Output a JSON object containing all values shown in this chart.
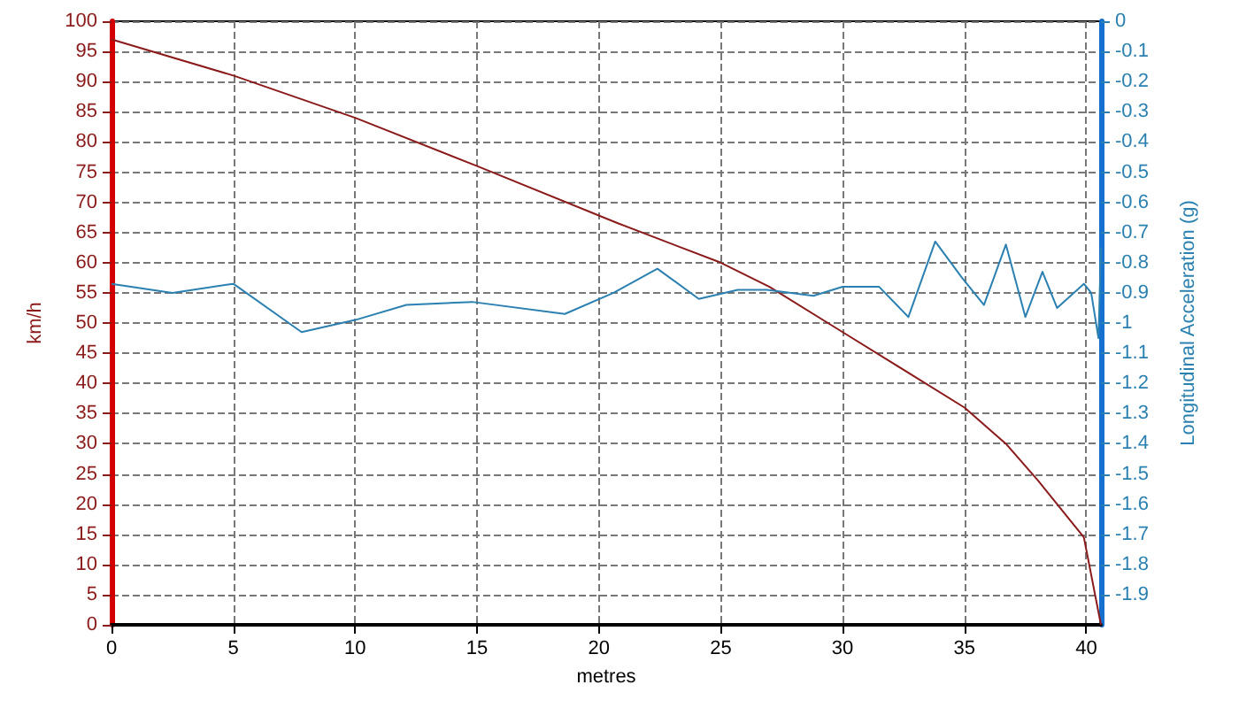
{
  "chart_data": {
    "type": "line",
    "xlabel": "metres",
    "ylabel": "km/h",
    "y2label": "Longitudinal Acceleration (g)",
    "xlim": [
      0,
      40.6
    ],
    "xticks": [
      0,
      5,
      10,
      15,
      20,
      25,
      30,
      35,
      40
    ],
    "ylim": [
      0,
      100
    ],
    "yticks": [
      0,
      5,
      10,
      15,
      20,
      25,
      30,
      35,
      40,
      45,
      50,
      55,
      60,
      65,
      70,
      75,
      80,
      85,
      90,
      95,
      100
    ],
    "y2lim": [
      -2,
      0
    ],
    "y2ticks": [
      0,
      -0.1,
      -0.2,
      -0.3,
      -0.4,
      -0.5,
      -0.6,
      -0.7,
      -0.8,
      -0.9,
      -1,
      -1.1,
      -1.2,
      -1.3,
      -1.4,
      -1.5,
      -1.6,
      -1.7,
      -1.8,
      -1.9
    ],
    "grid": true,
    "marker": "none",
    "line_style": "solid",
    "series": [
      {
        "color": "#8b1a1a",
        "x": [
          0,
          5,
          10,
          15,
          20.8,
          25,
          27,
          30,
          35,
          36.7,
          38,
          39.9,
          40.6
        ],
        "values": [
          97,
          91,
          84,
          76,
          66.5,
          60,
          56,
          48.5,
          36,
          30,
          24,
          14.5,
          0
        ]
      },
      {
        "color": "#2a80b0",
        "axis": "y2",
        "x": [
          0,
          2.5,
          5,
          7.8,
          10,
          12.1,
          14.8,
          18.6,
          20.6,
          22.4,
          24.1,
          25.7,
          26.9,
          28.8,
          30,
          31.5,
          32.7,
          33.8,
          34.9,
          35.8,
          36.7,
          37.5,
          38.2,
          38.8,
          39.9,
          40.2,
          40.5,
          40.6
        ],
        "values": [
          -0.87,
          -0.9,
          -0.87,
          -1.03,
          -0.99,
          -0.94,
          -0.93,
          -0.97,
          -0.9,
          -0.82,
          -0.92,
          -0.89,
          -0.89,
          -0.91,
          -0.88,
          -0.88,
          -0.98,
          -0.73,
          -0.85,
          -0.94,
          -0.74,
          -0.98,
          -0.83,
          -0.95,
          -0.87,
          -0.9,
          -1.05,
          -0.75
        ]
      }
    ]
  }
}
